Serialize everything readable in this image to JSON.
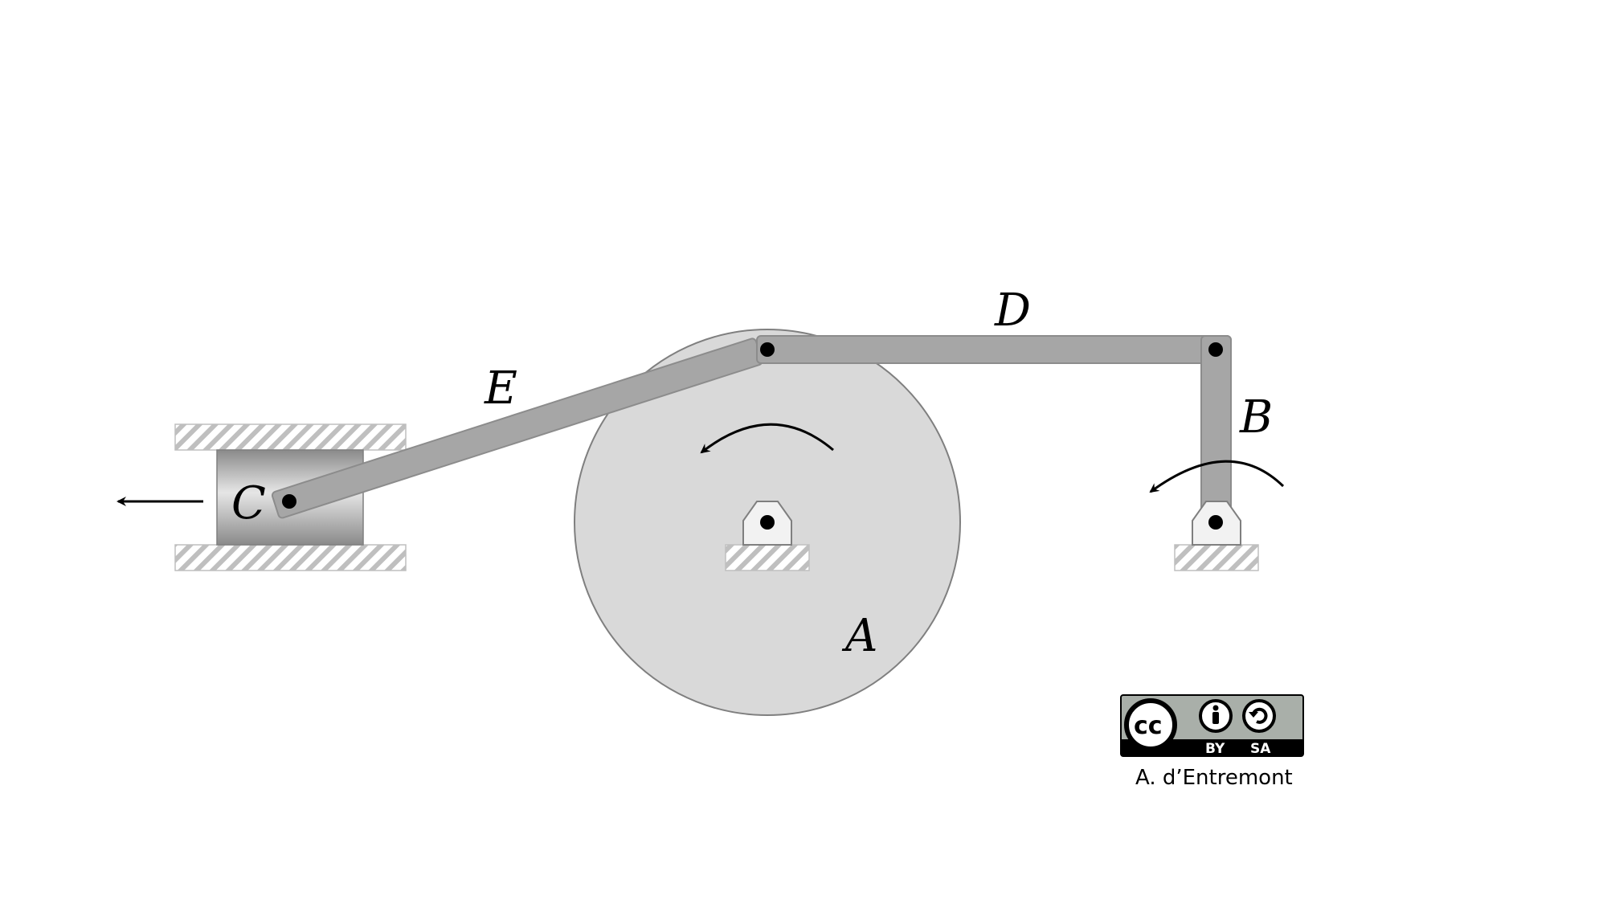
{
  "labels": {
    "A": "A",
    "B": "B",
    "C": "C",
    "D": "D",
    "E": "E"
  },
  "license": {
    "cc": "cc",
    "by": "BY",
    "sa": "SA",
    "author": "A. d’Entremont"
  },
  "colors": {
    "link": "#a6a6a6",
    "link_stroke": "#8c8c8c",
    "disc": "#d9d9d9",
    "ground_hatch": "#bfbfbf",
    "pin": "#000000"
  }
}
